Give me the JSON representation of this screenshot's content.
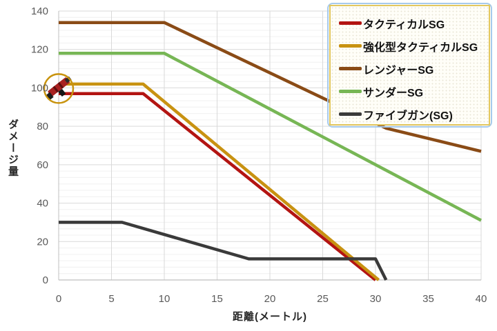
{
  "chart_data": {
    "type": "line",
    "title": "",
    "xlabel": "距離(メートル)",
    "ylabel": "ダメージ量",
    "xlim": [
      0,
      40
    ],
    "ylim": [
      0,
      140
    ],
    "x_ticks": [
      0,
      5,
      10,
      15,
      20,
      25,
      30,
      35,
      40
    ],
    "y_ticks": [
      0,
      20,
      40,
      60,
      80,
      100,
      120,
      140
    ],
    "grid": {
      "vertical_major": true,
      "horizontal_major": true,
      "horizontal_minor_divisions": 6,
      "major_color": "#D9D9D9",
      "minor_color": "#F0F0F0",
      "axis_color": "#BFBFBF"
    },
    "legend_position": "top-right",
    "series": [
      {
        "name": "タクティカルSG",
        "color": "#B31412",
        "points": [
          [
            0,
            97
          ],
          [
            8,
            97
          ],
          [
            30,
            0
          ]
        ]
      },
      {
        "name": "強化型タクティカルSG",
        "color": "#C89211",
        "points": [
          [
            0,
            102
          ],
          [
            8,
            102
          ],
          [
            30.3,
            0
          ]
        ]
      },
      {
        "name": "レンジャーSG",
        "color": "#8A4B16",
        "points": [
          [
            0,
            134
          ],
          [
            10,
            134
          ],
          [
            31,
            79
          ],
          [
            40,
            67
          ]
        ]
      },
      {
        "name": "サンダーSG",
        "color": "#77B655",
        "points": [
          [
            0,
            118
          ],
          [
            10,
            118
          ],
          [
            40,
            31
          ]
        ]
      },
      {
        "name": "ファイブガン(SG)",
        "color": "#3A3A3A",
        "points": [
          [
            0,
            30
          ],
          [
            6,
            30
          ],
          [
            18,
            11
          ],
          [
            30,
            11
          ],
          [
            31,
            0
          ]
        ]
      }
    ],
    "annotations": [
      {
        "type": "weapon-icon",
        "at": [
          0,
          100
        ],
        "label": "shotgun icon circled in gold",
        "ring_color": "#C8930E"
      }
    ],
    "tick_label_color": "#595959",
    "background": "#FFFFFF"
  },
  "legend_box": {
    "border_color": "#E2C75F",
    "selection_border_color": "#A6CAEC",
    "background": "#FFFEF8"
  }
}
